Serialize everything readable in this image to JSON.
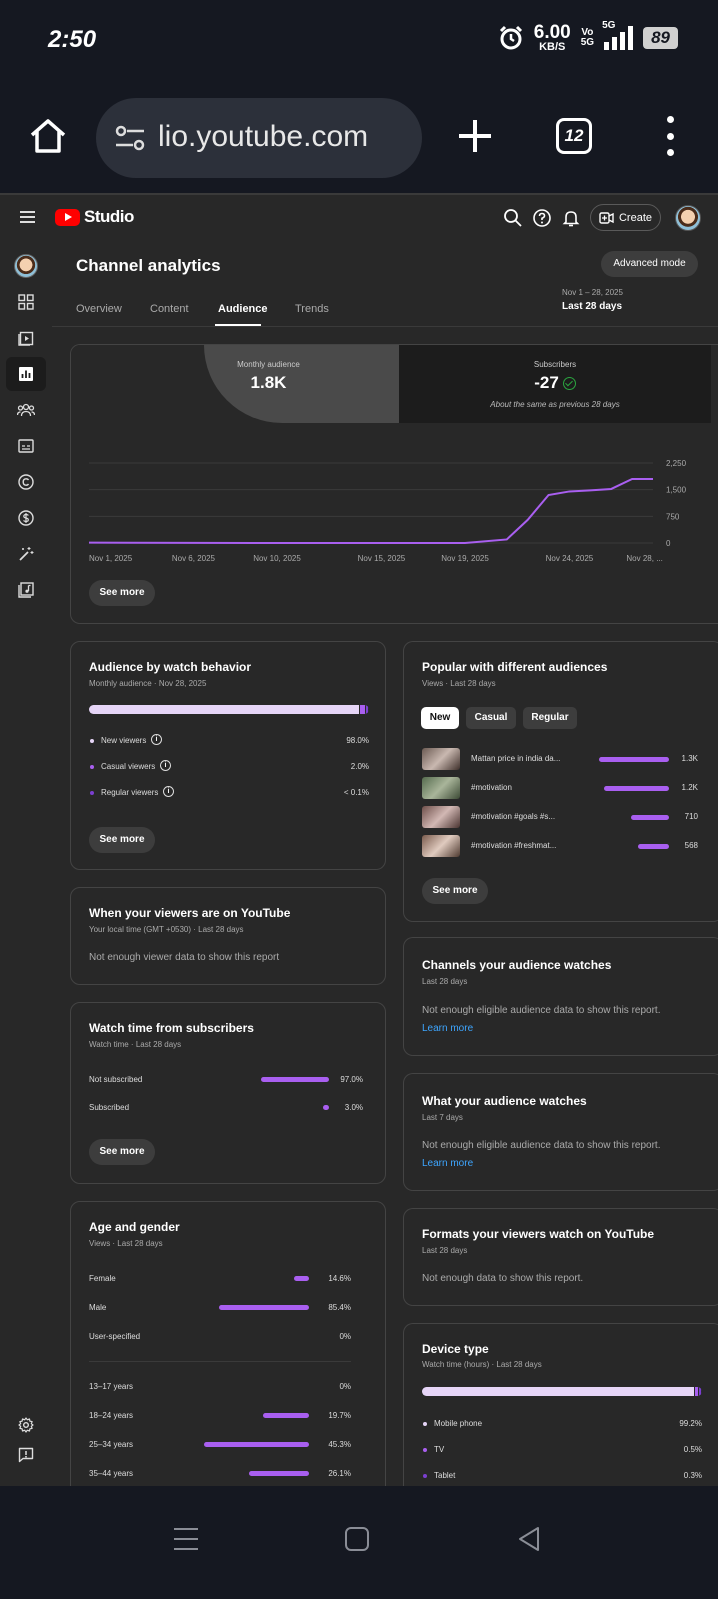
{
  "status_bar": {
    "time": "2:50",
    "speed_value": "6.00",
    "speed_unit": "KB/S",
    "vo_top": "Vo",
    "vo_bottom": "5G",
    "network": "5G",
    "battery": "89"
  },
  "browser": {
    "url": "lio.youtube.com",
    "tab_count": "12"
  },
  "studio": {
    "logo_text": "Studio",
    "create_label": "Create",
    "page_title": "Channel analytics",
    "advanced_mode": "Advanced mode",
    "tabs": [
      "Overview",
      "Content",
      "Audience",
      "Trends"
    ],
    "active_tab": "Audience",
    "date_range_small": "Nov 1 – 28, 2025",
    "date_range": "Last 28 days"
  },
  "summary": {
    "monthly_audience_label": "Monthly audience",
    "monthly_audience_value": "1.8K",
    "subscribers_label": "Subscribers",
    "subscribers_value": "-27",
    "subscribers_note": "About the same as previous 28 days",
    "see_more": "See more"
  },
  "chart_data": {
    "type": "line",
    "x": [
      "Nov 1, 2025",
      "Nov 6, 2025",
      "Nov 10, 2025",
      "Nov 15, 2025",
      "Nov 19, 2025",
      "Nov 21, 2025",
      "Nov 22, 2025",
      "Nov 23, 2025",
      "Nov 24, 2025",
      "Nov 25, 2025",
      "Nov 26, 2025",
      "Nov 27, 2025",
      "Nov 28, 2025"
    ],
    "series": [
      {
        "values": [
          10,
          5,
          0,
          0,
          0,
          100,
          650,
          1350,
          1450,
          1480,
          1520,
          1800,
          1800
        ],
        "color": "#a95ff0"
      }
    ],
    "x_tick_labels": [
      "Nov 1, 2025",
      "Nov 6, 2025",
      "Nov 10, 2025",
      "Nov 15, 2025",
      "Nov 19, 2025",
      "Nov 24, 2025",
      "Nov 28, ..."
    ],
    "y_tick_labels": [
      "2,250",
      "1,500",
      "750",
      "0"
    ],
    "ylim": [
      0,
      2250
    ],
    "grid": true
  },
  "watch_behavior": {
    "title": "Audience by watch behavior",
    "subtitle": "Monthly audience · Nov 28, 2025",
    "rows": [
      {
        "label": "New viewers",
        "value": "98.0%",
        "pct": 98.0,
        "color": "#e6d5f7"
      },
      {
        "label": "Casual viewers",
        "value": "2.0%",
        "pct": 2.0,
        "color": "#a95ff0"
      },
      {
        "label": "Regular viewers",
        "value": "< 0.1%",
        "pct": 0.1,
        "color": "#7b3fd0"
      }
    ],
    "see_more": "See more"
  },
  "popular": {
    "title": "Popular with different audiences",
    "subtitle": "Views · Last 28 days",
    "chips": [
      "New",
      "Casual",
      "Regular"
    ],
    "selected_chip": "New",
    "videos": [
      {
        "title": "Mattan price in india da...",
        "value": "1.3K",
        "views": 1300
      },
      {
        "title": "#motivation",
        "value": "1.2K",
        "views": 1200
      },
      {
        "title": "#motivation #goals #s...",
        "value": "710",
        "views": 710
      },
      {
        "title": "#motivation #freshmat...",
        "value": "568",
        "views": 568
      }
    ],
    "see_more": "See more"
  },
  "when_on_youtube": {
    "title": "When your viewers are on YouTube",
    "subtitle": "Your local time (GMT +0530) · Last 28 days",
    "note": "Not enough viewer data to show this report"
  },
  "channels_watched": {
    "title": "Channels your audience watches",
    "subtitle": "Last 28 days",
    "note": "Not enough eligible audience data to show this report.",
    "link": "Learn more"
  },
  "subscriber_watch_time": {
    "title": "Watch time from subscribers",
    "subtitle": "Watch time · Last 28 days",
    "rows": [
      {
        "label": "Not subscribed",
        "value": "97.0%",
        "pct": 97.0
      },
      {
        "label": "Subscribed",
        "value": "3.0%",
        "pct": 3.0
      }
    ],
    "see_more": "See more"
  },
  "what_audience_watches": {
    "title": "What your audience watches",
    "subtitle": "Last 7 days",
    "note": "Not enough eligible audience data to show this report.",
    "link": "Learn more"
  },
  "formats": {
    "title": "Formats your viewers watch on YouTube",
    "subtitle": "Last 28 days",
    "note": "Not enough data to show this report."
  },
  "age_gender": {
    "title": "Age and gender",
    "subtitle": "Views · Last 28 days",
    "gender": [
      {
        "label": "Female",
        "value": "14.6%",
        "pct": 14.6
      },
      {
        "label": "Male",
        "value": "85.4%",
        "pct": 85.4
      },
      {
        "label": "User-specified",
        "value": "0%",
        "pct": 0
      }
    ],
    "age": [
      {
        "label": "13–17 years",
        "value": "0%",
        "pct": 0
      },
      {
        "label": "18–24 years",
        "value": "19.7%",
        "pct": 19.7
      },
      {
        "label": "25–34 years",
        "value": "45.3%",
        "pct": 45.3
      },
      {
        "label": "35–44 years",
        "value": "26.1%",
        "pct": 26.1
      }
    ]
  },
  "device_type": {
    "title": "Device type",
    "subtitle": "Watch time (hours) · Last 28 days",
    "rows": [
      {
        "label": "Mobile phone",
        "value": "99.2%",
        "pct": 99.2,
        "color": "#e6d5f7"
      },
      {
        "label": "TV",
        "value": "0.5%",
        "pct": 0.5,
        "color": "#a95ff0"
      },
      {
        "label": "Tablet",
        "value": "0.3%",
        "pct": 0.3,
        "color": "#7b3fd0"
      }
    ]
  },
  "colors": {
    "accent": "#a95ff0",
    "link": "#3ea6ff",
    "positive": "#2ba640",
    "page_bg": "#282828",
    "system_bg": "#151821"
  }
}
